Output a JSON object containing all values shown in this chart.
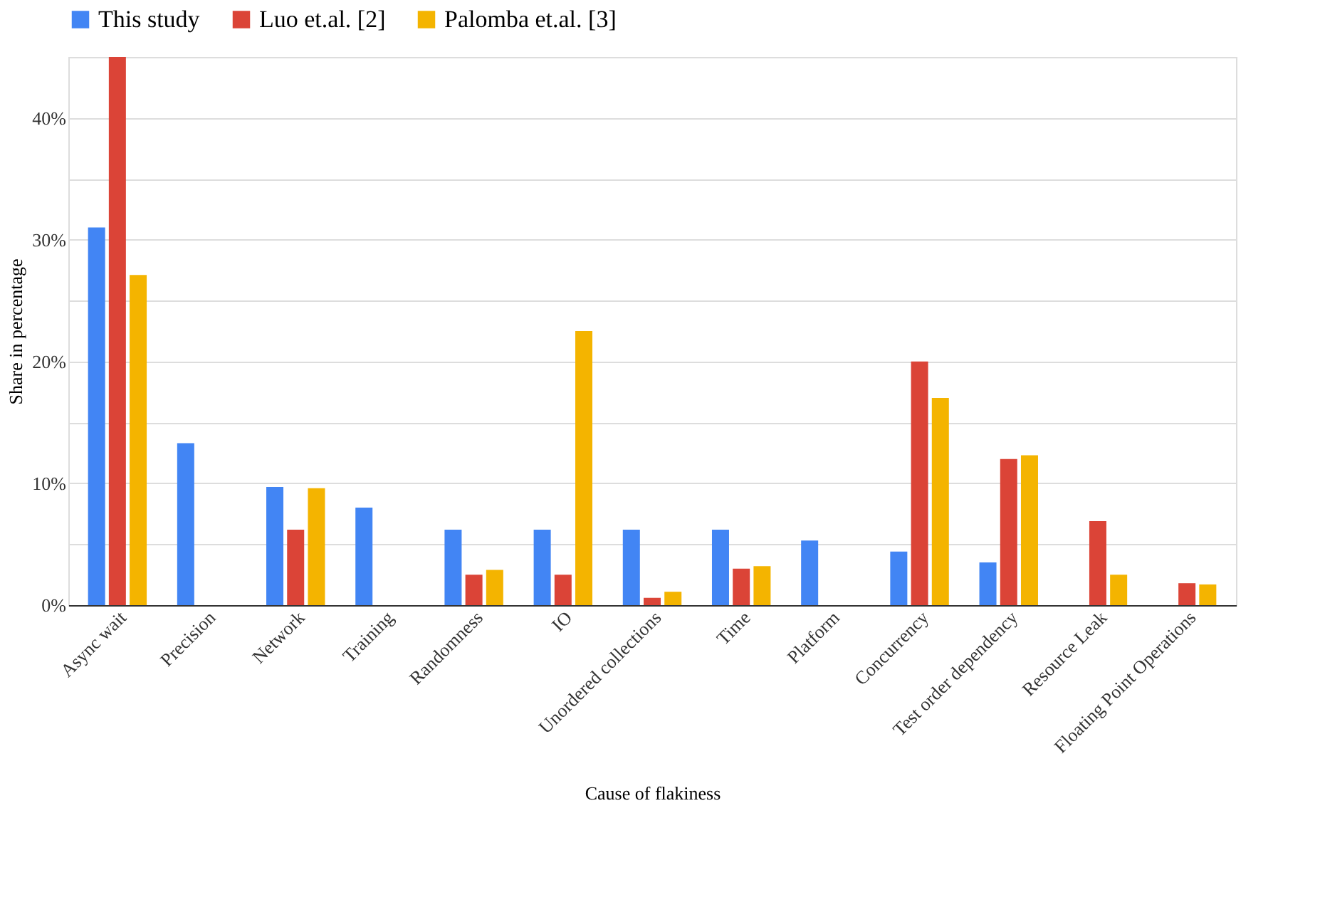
{
  "chart_data": {
    "type": "bar",
    "xlabel": "Cause of flakiness",
    "ylabel": "Share in percentage",
    "categories": [
      "Async wait",
      "Precision",
      "Network",
      "Training",
      "Randomness",
      "IO",
      "Unordered collections",
      "Time",
      "Platform",
      "Concurrency",
      "Test order dependency",
      "Resource Leak",
      "Floating Point Operations"
    ],
    "series": [
      {
        "name": "This study",
        "color": "#4285f4",
        "values": [
          31.0,
          13.3,
          9.7,
          8.0,
          6.2,
          6.2,
          6.2,
          6.2,
          5.3,
          4.4,
          3.5,
          null,
          null
        ]
      },
      {
        "name": "Luo et.al. [2]",
        "color": "#db4437",
        "values": [
          45.0,
          null,
          6.2,
          null,
          2.5,
          2.5,
          0.6,
          3.0,
          null,
          20.0,
          12.0,
          6.9,
          1.8
        ]
      },
      {
        "name": "Palomba et.al. [3]",
        "color": "#f4b400",
        "values": [
          27.1,
          null,
          9.6,
          null,
          2.9,
          22.5,
          1.1,
          3.2,
          null,
          17.0,
          12.3,
          2.5,
          1.7
        ]
      }
    ],
    "ylim": [
      0,
      45
    ],
    "yticks": [
      {
        "value": 0,
        "label": "0%"
      },
      {
        "value": 5,
        "label": null
      },
      {
        "value": 10,
        "label": "10%"
      },
      {
        "value": 15,
        "label": null
      },
      {
        "value": 20,
        "label": "20%"
      },
      {
        "value": 25,
        "label": null
      },
      {
        "value": 30,
        "label": "30%"
      },
      {
        "value": 35,
        "label": null
      },
      {
        "value": 40,
        "label": "40%"
      },
      {
        "value": 45,
        "label": null
      }
    ],
    "grid": "y",
    "legend": "top"
  }
}
